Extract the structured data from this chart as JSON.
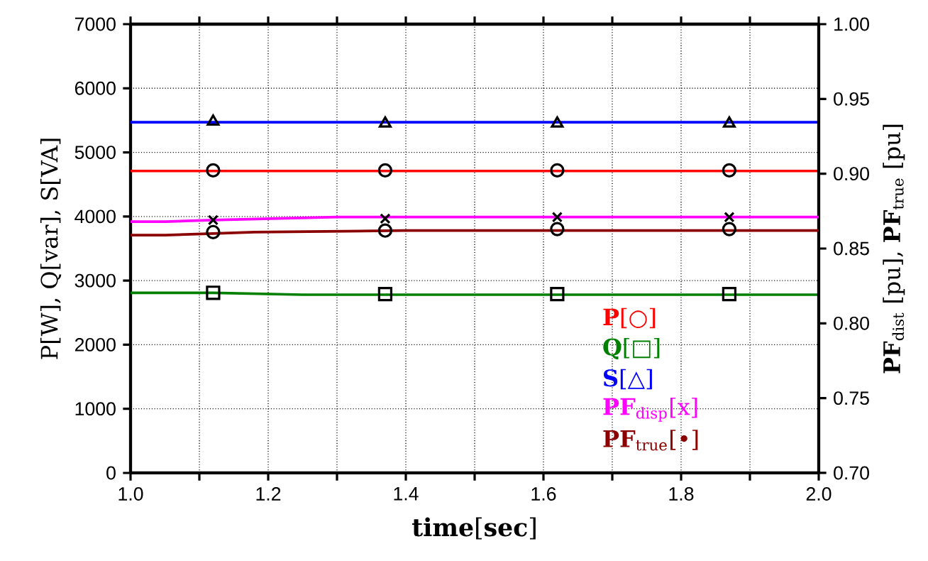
{
  "chart_data": {
    "type": "line",
    "xlabel": "**time**[**sec**]",
    "ylabel": "P[W], Q[var], S[VA]",
    "y2label": "**PF**$_{dist}$ [pu], **PF**$_{true}$ [pu]",
    "xlim": [
      1.0,
      2.0
    ],
    "xticks": [
      {
        "value": 1.0,
        "label": "1.0"
      },
      {
        "value": 1.1,
        "label": null
      },
      {
        "value": 1.2,
        "label": "1.2"
      },
      {
        "value": 1.3,
        "label": null
      },
      {
        "value": 1.4,
        "label": "1.4"
      },
      {
        "value": 1.5,
        "label": null
      },
      {
        "value": 1.6,
        "label": "1.6"
      },
      {
        "value": 1.7,
        "label": null
      },
      {
        "value": 1.8,
        "label": "1.8"
      },
      {
        "value": 1.9,
        "label": null
      },
      {
        "value": 2.0,
        "label": "2.0"
      }
    ],
    "ylim": [
      0,
      7000
    ],
    "yticks": [
      0,
      1000,
      2000,
      3000,
      4000,
      5000,
      6000,
      7000
    ],
    "y2lim": [
      0.7,
      1.0
    ],
    "y2ticks": [
      {
        "value": 0.7,
        "label": "0.70"
      },
      {
        "value": 0.75,
        "label": "0.75"
      },
      {
        "value": 0.8,
        "label": "0.80"
      },
      {
        "value": 0.85,
        "label": "0.85"
      },
      {
        "value": 0.9,
        "label": "0.90"
      },
      {
        "value": 0.95,
        "label": "0.95"
      },
      {
        "value": 1.0,
        "label": "1.00"
      }
    ],
    "grid": true,
    "legend": "bottom right",
    "line_style": "solid",
    "series": [
      {
        "name": "**P**[○]",
        "color": "#ff0000",
        "marker": "none",
        "x": [
          1.0,
          2.0
        ],
        "values": [
          4710,
          4710
        ]
      },
      {
        "name": "**Q**[□]",
        "color": "#008000",
        "marker": "none",
        "x": [
          1.0,
          1.12,
          1.25,
          2.0
        ],
        "values": [
          2810,
          2810,
          2780,
          2780
        ]
      },
      {
        "name": "**S**[△]",
        "color": "#0000ff",
        "marker": "none",
        "x": [
          1.0,
          2.0
        ],
        "values": [
          5470,
          5470
        ]
      },
      {
        "name": "**PF**$_{disp}$[x]",
        "color": "#ff00ff",
        "marker": "none",
        "axis": "y2",
        "x": [
          1.0,
          1.05,
          1.12,
          1.3,
          1.4,
          2.0
        ],
        "values": [
          0.868,
          0.868,
          0.869,
          0.871,
          0.871,
          0.871
        ]
      },
      {
        "name": "**PF**$_{true}$[•]",
        "color": "#8b0000",
        "marker": "none",
        "axis": "y2",
        "x": [
          1.0,
          1.05,
          1.12,
          1.18,
          1.4,
          2.0
        ],
        "values": [
          0.859,
          0.859,
          0.86,
          0.861,
          0.862,
          0.862
        ]
      },
      {
        "type": "scatter",
        "color": "#000000",
        "marker": "circle",
        "x": [
          1.12,
          1.37,
          1.62,
          1.87
        ],
        "values": [
          4720,
          4720,
          4720,
          4720
        ]
      },
      {
        "type": "scatter",
        "color": "#000000",
        "marker": "square",
        "x": [
          1.12,
          1.37,
          1.62,
          1.87
        ],
        "values": [
          2810,
          2790,
          2790,
          2790
        ]
      },
      {
        "type": "scatter",
        "color": "#000000",
        "marker": "triangle",
        "x": [
          1.12,
          1.37,
          1.62,
          1.87
        ],
        "values": [
          5480,
          5450,
          5450,
          5450
        ]
      },
      {
        "type": "scatter",
        "color": "#000000",
        "marker": "cross",
        "axis": "y2",
        "x": [
          1.12,
          1.37,
          1.62,
          1.87
        ],
        "values": [
          0.869,
          0.87,
          0.871,
          0.871
        ]
      },
      {
        "type": "scatter",
        "color": "#000000",
        "marker": "circle",
        "axis": "y2",
        "x": [
          1.12,
          1.37,
          1.62,
          1.87
        ],
        "values": [
          0.861,
          0.862,
          0.863,
          0.863
        ]
      }
    ]
  }
}
